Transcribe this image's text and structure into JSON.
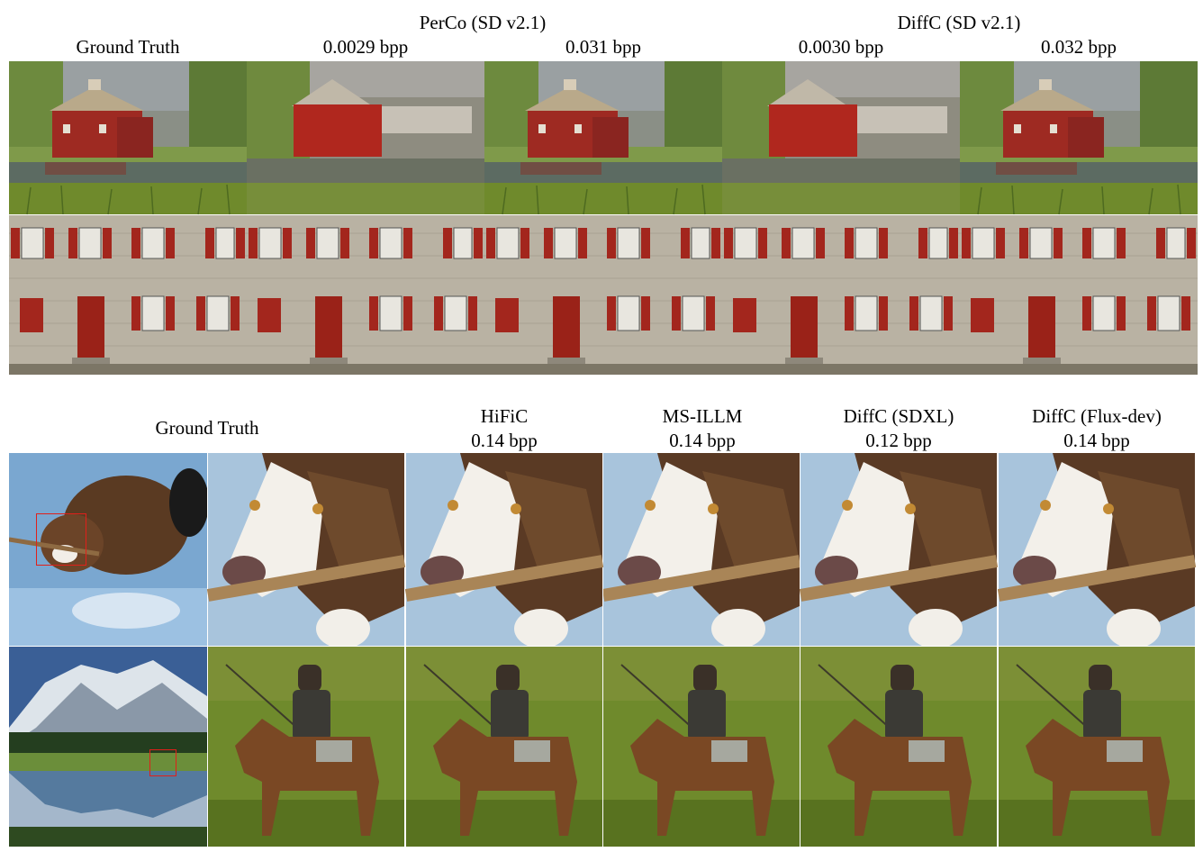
{
  "top_figure": {
    "group_headers": {
      "perco": "PerCo (SD v2.1)",
      "diffc": "DiffC (SD v2.1)"
    },
    "columns": [
      {
        "label": "Ground Truth"
      },
      {
        "label": "0.0029 bpp"
      },
      {
        "label": "0.031 bpp"
      },
      {
        "label": "0.0030 bpp"
      },
      {
        "label": "0.032 bpp"
      }
    ],
    "rows": [
      "barn-pond",
      "stone-building-facade"
    ]
  },
  "bottom_figure": {
    "ground_truth_label": "Ground Truth",
    "columns": [
      {
        "method": "HiFiC",
        "bpp": "0.14 bpp"
      },
      {
        "method": "MS-ILLM",
        "bpp": "0.14 bpp"
      },
      {
        "method": "DiffC (SDXL)",
        "bpp": "0.12 bpp"
      },
      {
        "method": "DiffC (Flux-dev)",
        "bpp": "0.14 bpp"
      }
    ],
    "rows": [
      "dog-with-stick",
      "horse-rider-in-mountains"
    ]
  },
  "colors": {
    "crop_box": "#e0201a",
    "barn_red": "#9e2a22",
    "shutter_red": "#a3261d",
    "stone_wall": "#b9b2a3",
    "water_blue": "#7aa7d0",
    "grass_green": "#6f8a2c"
  }
}
